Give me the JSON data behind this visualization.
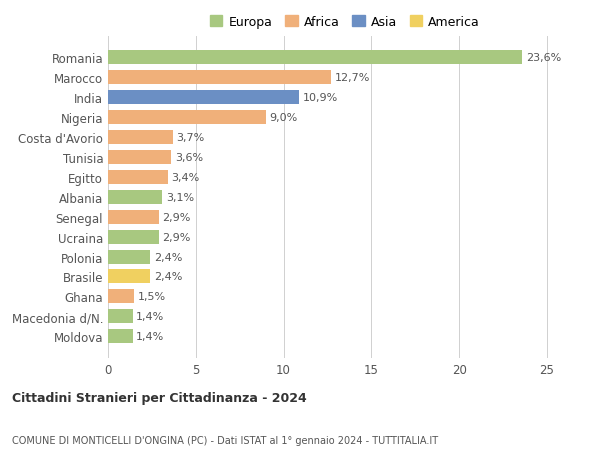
{
  "countries": [
    "Romania",
    "Marocco",
    "India",
    "Nigeria",
    "Costa d'Avorio",
    "Tunisia",
    "Egitto",
    "Albania",
    "Senegal",
    "Ucraina",
    "Polonia",
    "Brasile",
    "Ghana",
    "Macedonia d/N.",
    "Moldova"
  ],
  "values": [
    23.6,
    12.7,
    10.9,
    9.0,
    3.7,
    3.6,
    3.4,
    3.1,
    2.9,
    2.9,
    2.4,
    2.4,
    1.5,
    1.4,
    1.4
  ],
  "labels": [
    "23,6%",
    "12,7%",
    "10,9%",
    "9,0%",
    "3,7%",
    "3,6%",
    "3,4%",
    "3,1%",
    "2,9%",
    "2,9%",
    "2,4%",
    "2,4%",
    "1,5%",
    "1,4%",
    "1,4%"
  ],
  "bar_colors": [
    "#a8c880",
    "#f0b07a",
    "#6b8fc4",
    "#f0b07a",
    "#f0b07a",
    "#f0b07a",
    "#f0b07a",
    "#a8c880",
    "#f0b07a",
    "#a8c880",
    "#a8c880",
    "#f0d060",
    "#f0b07a",
    "#a8c880",
    "#a8c880"
  ],
  "xlim": [
    0,
    27
  ],
  "title1": "Cittadini Stranieri per Cittadinanza - 2024",
  "title2": "COMUNE DI MONTICELLI D'ONGINA (PC) - Dati ISTAT al 1° gennaio 2024 - TUTTITALIA.IT",
  "legend_labels": [
    "Europa",
    "Africa",
    "Asia",
    "America"
  ],
  "legend_colors": [
    "#a8c880",
    "#f0b07a",
    "#6b8fc4",
    "#f0d060"
  ],
  "xticks": [
    0,
    5,
    10,
    15,
    20,
    25
  ],
  "background_color": "#ffffff",
  "grid_color": "#d0d0d0"
}
